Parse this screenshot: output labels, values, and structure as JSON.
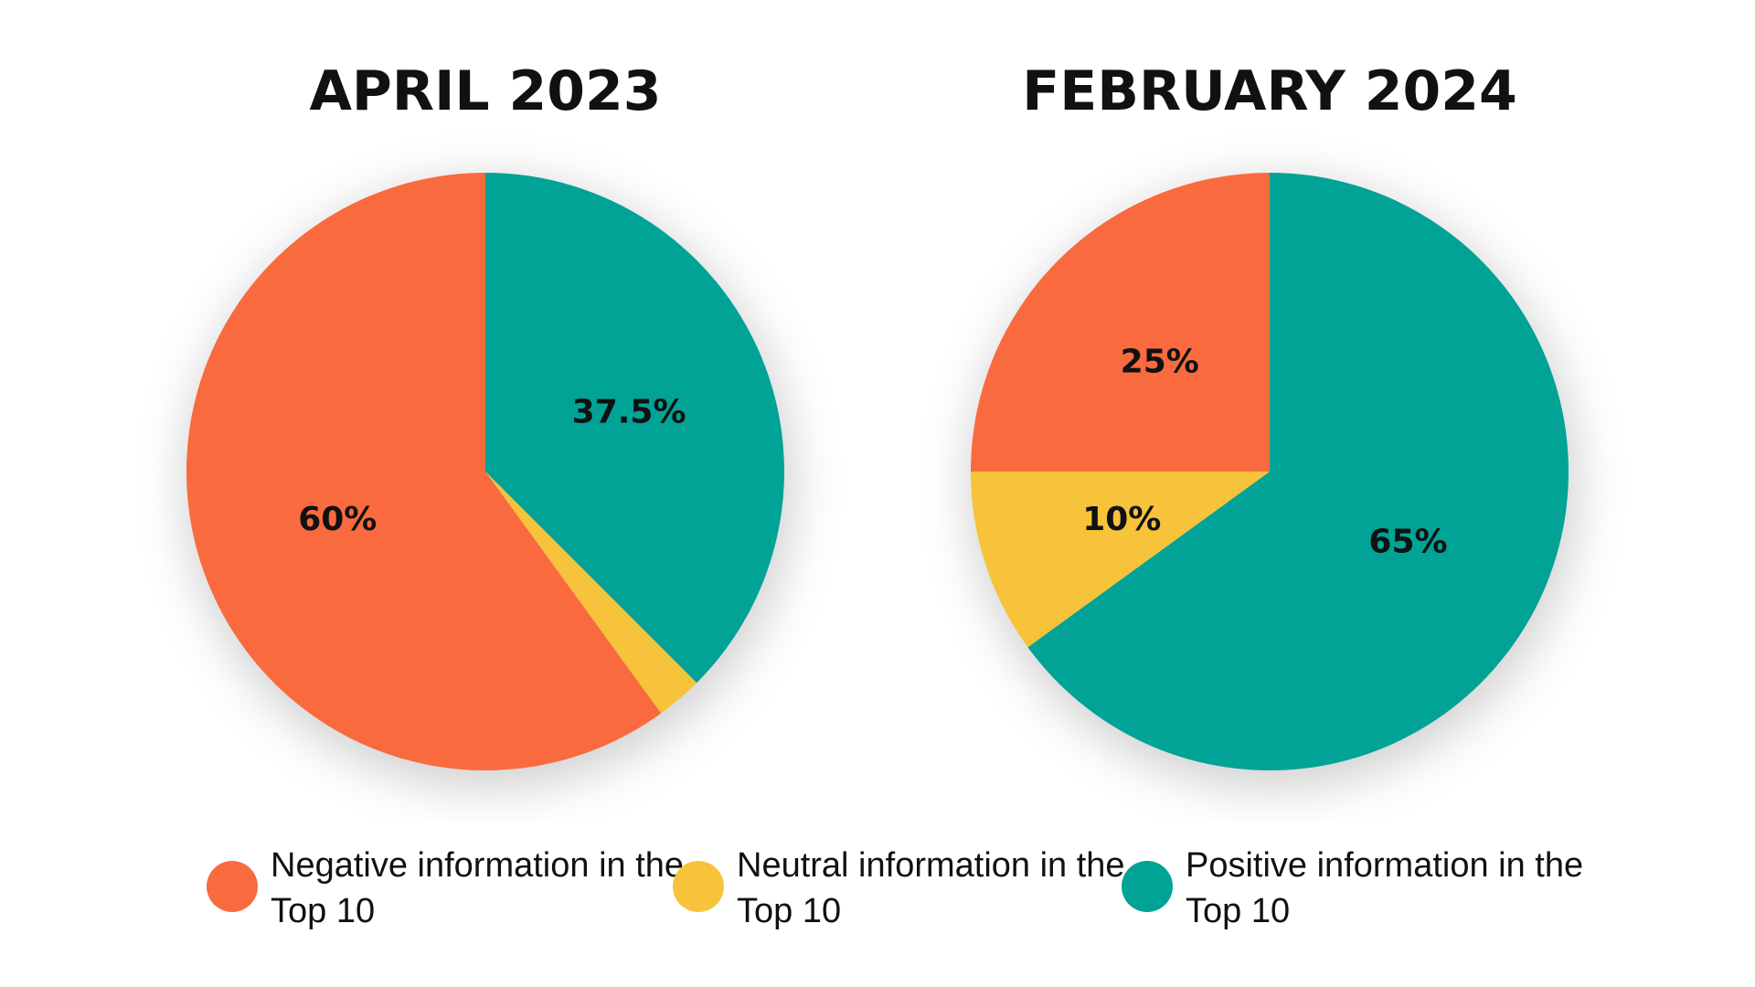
{
  "colors": {
    "negative": "#F96A3F",
    "neutral": "#F6C33A",
    "positive": "#00A396",
    "label_text": "#111111",
    "title_text": "#111111"
  },
  "legend": [
    {
      "key": "negative",
      "label": "Negative information in the Top 10"
    },
    {
      "key": "neutral",
      "label": "Neutral information in the Top 10"
    },
    {
      "key": "positive",
      "label": "Positive information in the Top 10"
    }
  ],
  "chart_data": [
    {
      "type": "pie",
      "title": "APRIL 2023",
      "slices": [
        {
          "name": "Positive information in the Top 10",
          "key": "positive",
          "value": 37.5,
          "label": "37.5%"
        },
        {
          "name": "Neutral information in the Top 10",
          "key": "neutral",
          "value": 2.5,
          "label": ""
        },
        {
          "name": "Negative information in the Top 10",
          "key": "negative",
          "value": 60,
          "label": "60%"
        }
      ]
    },
    {
      "type": "pie",
      "title": "FEBRUARY 2024",
      "slices": [
        {
          "name": "Positive information in the Top 10",
          "key": "positive",
          "value": 65,
          "label": "65%"
        },
        {
          "name": "Neutral information in the Top 10",
          "key": "neutral",
          "value": 10,
          "label": "10%"
        },
        {
          "name": "Negative information in the Top 10",
          "key": "negative",
          "value": 25,
          "label": "25%"
        }
      ]
    }
  ]
}
